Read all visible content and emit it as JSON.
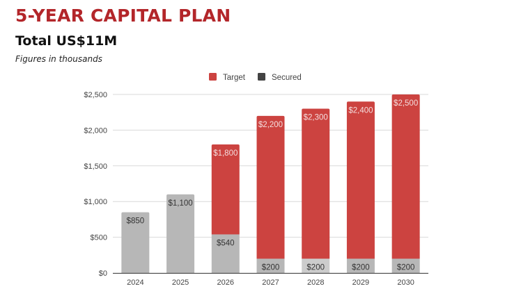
{
  "header": {
    "title": "5-YEAR CAPITAL PLAN",
    "subtitle": "Total US$11M",
    "note": "Figures in thousands"
  },
  "chart_data": {
    "type": "bar",
    "stacked": true,
    "categories": [
      "2024",
      "2025",
      "2026",
      "2027",
      "2028",
      "2029",
      "2030"
    ],
    "series": [
      {
        "name": "Secured",
        "color": "#b7b7b7",
        "legend_color": "#434343",
        "values": [
          850,
          1100,
          540,
          200,
          200,
          200,
          200
        ],
        "labels": [
          "$850",
          "$1,100",
          "$540",
          "$200",
          "$200",
          "$200",
          "$200"
        ]
      },
      {
        "name": "Target",
        "color": "#cc4340",
        "values": [
          0,
          0,
          1260,
          2000,
          2100,
          2200,
          2300
        ],
        "labels": [
          "",
          "",
          "$1,800",
          "$2,200",
          "$2,300",
          "$2,400",
          "$2,500"
        ]
      }
    ],
    "totals": [
      850,
      1100,
      1800,
      2200,
      2300,
      2400,
      2500
    ],
    "legend": [
      {
        "name": "Target",
        "color": "#cc4340"
      },
      {
        "name": "Secured",
        "color": "#434343"
      }
    ],
    "legend_position": "top",
    "yticks": [
      "$0",
      "$500",
      "$1,000",
      "$1,500",
      "$2,000",
      "$2,500"
    ],
    "ytick_values": [
      0,
      500,
      1000,
      1500,
      2000,
      2500
    ],
    "ylim": [
      0,
      2500
    ],
    "xlabel": "",
    "ylabel": "",
    "grid": true
  }
}
